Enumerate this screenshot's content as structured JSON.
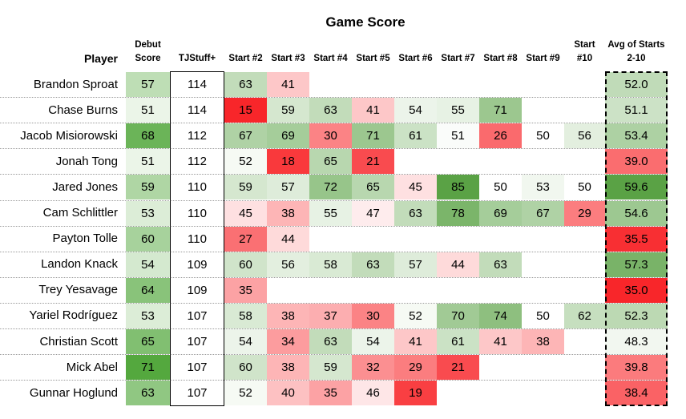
{
  "chart_data": {
    "type": "table",
    "title": "Game Score",
    "columns": [
      "Player",
      "Debut Score",
      "TJStuff+",
      "Start #2",
      "Start #3",
      "Start #4",
      "Start #5",
      "Start #6",
      "Start #7",
      "Start #8",
      "Start #9",
      "Start #10",
      "Avg of Starts 2-10"
    ],
    "header_lines": [
      [
        "Player"
      ],
      [
        "Debut",
        "Score"
      ],
      [
        "TJStuff+"
      ],
      [
        "Start #2"
      ],
      [
        "Start #3"
      ],
      [
        "Start #4"
      ],
      [
        "Start #5"
      ],
      [
        "Start #6"
      ],
      [
        "Start #7"
      ],
      [
        "Start #8"
      ],
      [
        "Start #9"
      ],
      [
        "Start",
        "#10"
      ],
      [
        "Avg of Starts",
        "2-10"
      ]
    ],
    "rows": [
      {
        "player": "Brandon Sproat",
        "debut": 57,
        "tjstuff": 114,
        "starts": [
          63,
          41,
          null,
          null,
          null,
          null,
          null,
          null,
          null
        ],
        "avg": "52.0"
      },
      {
        "player": "Chase Burns",
        "debut": 51,
        "tjstuff": 114,
        "starts": [
          15,
          59,
          63,
          41,
          54,
          55,
          71,
          null,
          null
        ],
        "avg": "51.1"
      },
      {
        "player": "Jacob Misiorowski",
        "debut": 68,
        "tjstuff": 112,
        "starts": [
          67,
          69,
          30,
          71,
          61,
          51,
          26,
          50,
          56
        ],
        "avg": "53.4"
      },
      {
        "player": "Jonah Tong",
        "debut": 51,
        "tjstuff": 112,
        "starts": [
          52,
          18,
          65,
          21,
          null,
          null,
          null,
          null,
          null
        ],
        "avg": "39.0"
      },
      {
        "player": "Jared Jones",
        "debut": 59,
        "tjstuff": 110,
        "starts": [
          59,
          57,
          72,
          65,
          45,
          85,
          50,
          53,
          50
        ],
        "avg": "59.6"
      },
      {
        "player": "Cam Schlittler",
        "debut": 53,
        "tjstuff": 110,
        "starts": [
          45,
          38,
          55,
          47,
          63,
          78,
          69,
          67,
          29
        ],
        "avg": "54.6"
      },
      {
        "player": "Payton Tolle",
        "debut": 60,
        "tjstuff": 110,
        "starts": [
          27,
          44,
          null,
          null,
          null,
          null,
          null,
          null,
          null
        ],
        "avg": "35.5"
      },
      {
        "player": "Landon Knack",
        "debut": 54,
        "tjstuff": 109,
        "starts": [
          60,
          56,
          58,
          63,
          57,
          44,
          63,
          null,
          null
        ],
        "avg": "57.3"
      },
      {
        "player": "Trey Yesavage",
        "debut": 64,
        "tjstuff": 109,
        "starts": [
          35,
          null,
          null,
          null,
          null,
          null,
          null,
          null,
          null
        ],
        "avg": "35.0"
      },
      {
        "player": "Yariel Rodríguez",
        "debut": 53,
        "tjstuff": 107,
        "starts": [
          58,
          38,
          37,
          30,
          52,
          70,
          74,
          50,
          62
        ],
        "avg": "52.3"
      },
      {
        "player": "Christian Scott",
        "debut": 65,
        "tjstuff": 107,
        "starts": [
          54,
          34,
          63,
          54,
          41,
          61,
          41,
          38,
          null
        ],
        "avg": "48.3"
      },
      {
        "player": "Mick Abel",
        "debut": 71,
        "tjstuff": 107,
        "starts": [
          60,
          38,
          59,
          32,
          29,
          21,
          null,
          null,
          null
        ],
        "avg": "39.8"
      },
      {
        "player": "Gunnar Hoglund",
        "debut": 63,
        "tjstuff": 107,
        "starts": [
          52,
          40,
          35,
          46,
          19,
          null,
          null,
          null,
          null
        ],
        "avg": "38.4"
      }
    ],
    "color_scale": {
      "low": "#f8262a",
      "mid": "#ffffff",
      "high": "#5aa245"
    }
  }
}
